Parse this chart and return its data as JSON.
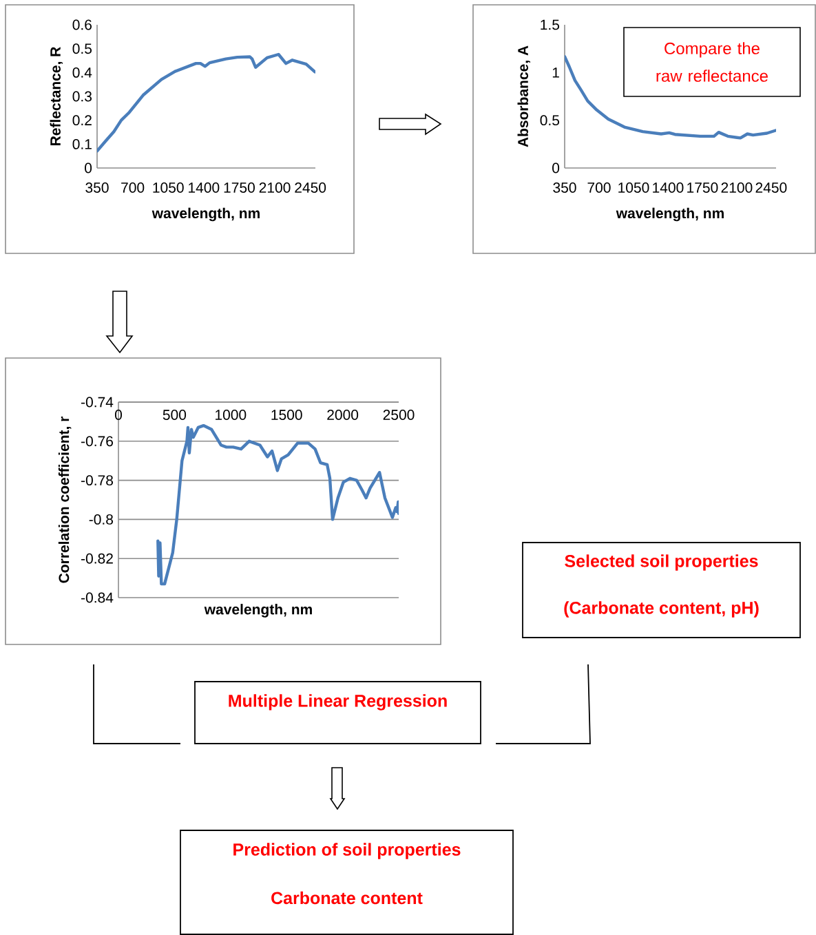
{
  "chart_data": [
    {
      "type": "line",
      "xlabel": "wavelength, nm",
      "ylabel": "Reflectance, R",
      "xlim": [
        350,
        2500
      ],
      "xticks": [
        350,
        700,
        1050,
        1400,
        1750,
        2100,
        2450
      ],
      "ylim": [
        0,
        0.6
      ],
      "yticks": [
        0,
        0.1,
        0.2,
        0.3,
        0.4,
        0.5,
        0.6
      ],
      "x": [
        350,
        436,
        515,
        588,
        667,
        803,
        984,
        1119,
        1323,
        1368,
        1414,
        1459,
        1617,
        1730,
        1855,
        1877,
        1911,
        2024,
        2137,
        2210,
        2273,
        2409,
        2495
      ],
      "series": [
        {
          "color": "#4a7ebb",
          "values": [
            0.071,
            0.114,
            0.152,
            0.2,
            0.233,
            0.305,
            0.371,
            0.405,
            0.438,
            0.438,
            0.426,
            0.441,
            0.457,
            0.464,
            0.466,
            0.457,
            0.422,
            0.462,
            0.476,
            0.438,
            0.452,
            0.435,
            0.403
          ]
        }
      ]
    },
    {
      "type": "line",
      "xlabel": "wavelength, nm",
      "ylabel": "Absorbance, A",
      "xlim": [
        350,
        2500
      ],
      "xticks": [
        350,
        700,
        1050,
        1400,
        1750,
        2100,
        2450
      ],
      "ylim": [
        0,
        1.5
      ],
      "yticks": [
        0,
        0.5,
        1,
        1.5
      ],
      "annotations": [
        "Compare the raw reflectance"
      ],
      "x": [
        350,
        397,
        455,
        514,
        584,
        677,
        794,
        958,
        1144,
        1331,
        1413,
        1472,
        1729,
        1869,
        1916,
        2009,
        2138,
        2208,
        2266,
        2407,
        2495
      ],
      "series": [
        {
          "color": "#4a7ebb",
          "values": [
            1.167,
            1.06,
            0.917,
            0.821,
            0.702,
            0.607,
            0.512,
            0.429,
            0.381,
            0.357,
            0.369,
            0.352,
            0.333,
            0.333,
            0.374,
            0.333,
            0.314,
            0.357,
            0.345,
            0.364,
            0.393
          ]
        }
      ]
    },
    {
      "type": "line",
      "xlabel": "wavelength, nm",
      "ylabel": "Correlation coefficient, r",
      "xlim": [
        0,
        2500
      ],
      "xticks": [
        0,
        500,
        1000,
        1500,
        2000,
        2500
      ],
      "ylim": [
        -0.84,
        -0.74
      ],
      "yticks": [
        -0.84,
        -0.82,
        -0.8,
        -0.78,
        -0.76,
        -0.74
      ],
      "grid": "y",
      "x": [
        352,
        359,
        371,
        383,
        412,
        448,
        484,
        520,
        567,
        611,
        620,
        632,
        651,
        668,
        711,
        759,
        831,
        915,
        963,
        1023,
        1094,
        1166,
        1262,
        1329,
        1370,
        1418,
        1454,
        1514,
        1598,
        1694,
        1754,
        1802,
        1862,
        1886,
        1910,
        1958,
        2006,
        2065,
        2125,
        2173,
        2209,
        2245,
        2329,
        2377,
        2444,
        2473,
        2485,
        2496,
        2500
      ],
      "series": [
        {
          "color": "#4a7ebb",
          "values": [
            -0.811,
            -0.829,
            -0.812,
            -0.833,
            -0.833,
            -0.825,
            -0.817,
            -0.8,
            -0.77,
            -0.76,
            -0.753,
            -0.766,
            -0.754,
            -0.758,
            -0.753,
            -0.752,
            -0.754,
            -0.762,
            -0.763,
            -0.763,
            -0.764,
            -0.76,
            -0.762,
            -0.768,
            -0.765,
            -0.775,
            -0.769,
            -0.767,
            -0.761,
            -0.761,
            -0.764,
            -0.771,
            -0.772,
            -0.779,
            -0.8,
            -0.789,
            -0.781,
            -0.779,
            -0.78,
            -0.785,
            -0.789,
            -0.784,
            -0.776,
            -0.789,
            -0.799,
            -0.794,
            -0.796,
            -0.791,
            -0.797
          ]
        }
      ]
    },
    {
      "type": "other",
      "annotations": [
        "Selected soil properties",
        "(Carbonate content, pH)"
      ]
    },
    {
      "type": "other",
      "annotations": [
        "Multiple Linear Regression"
      ]
    },
    {
      "type": "other",
      "annotations": [
        "Prediction of soil properties",
        "Carbonate content"
      ]
    }
  ]
}
